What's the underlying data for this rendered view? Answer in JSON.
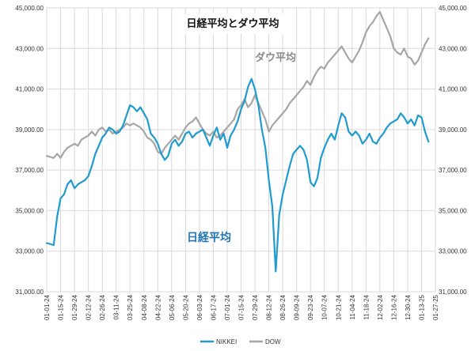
{
  "chart_data": {
    "type": "line",
    "title": "日経平均とダウ平均",
    "annotations": [
      {
        "text": "ダウ平均",
        "series": "DOW"
      },
      {
        "text": "日経平均",
        "series": "NIKKEI"
      }
    ],
    "y_left": {
      "min": 31000,
      "max": 45000,
      "ticks": [
        "31,000.00",
        "33,000.00",
        "35,000.00",
        "37,000.00",
        "39,000.00",
        "41,000.00",
        "43,000.00",
        "45,000.00"
      ]
    },
    "y_right": {
      "min": 31000,
      "max": 45000,
      "ticks": [
        "31,000.00",
        "33,000.00",
        "35,000.00",
        "37,000.00",
        "39,000.00",
        "41,000.00",
        "43,000.00",
        "45,000.00"
      ]
    },
    "x_ticks": [
      "01-01-24",
      "01-15-24",
      "01-29-24",
      "02-12-24",
      "02-26-24",
      "03-11-24",
      "03-25-24",
      "04-08-24",
      "04-22-24",
      "05-06-24",
      "05-20-24",
      "06-03-24",
      "06-17-24",
      "07-01-24",
      "07-15-24",
      "07-29-24",
      "08-12-24",
      "08-26-24",
      "09-09-24",
      "09-23-24",
      "10-07-24",
      "10-21-24",
      "11-04-24",
      "11-18-24",
      "12-02-24",
      "12-16-24",
      "12-30-24",
      "01-13-25",
      "01-27-25"
    ],
    "grid": true,
    "legend_position": "bottom",
    "series": [
      {
        "name": "NIKKEI",
        "color": "#1f9bcf",
        "points": [
          [
            0,
            33400
          ],
          [
            4,
            33300
          ],
          [
            6,
            34700
          ],
          [
            8,
            35600
          ],
          [
            10,
            35800
          ],
          [
            12,
            36300
          ],
          [
            14,
            36500
          ],
          [
            16,
            36100
          ],
          [
            18,
            36300
          ],
          [
            20,
            36400
          ],
          [
            22,
            36500
          ],
          [
            24,
            36700
          ],
          [
            26,
            37200
          ],
          [
            28,
            37800
          ],
          [
            30,
            38200
          ],
          [
            32,
            38600
          ],
          [
            34,
            38800
          ],
          [
            36,
            39100
          ],
          [
            38,
            39000
          ],
          [
            40,
            38800
          ],
          [
            42,
            38900
          ],
          [
            44,
            39200
          ],
          [
            46,
            39700
          ],
          [
            48,
            40200
          ],
          [
            50,
            40100
          ],
          [
            52,
            39900
          ],
          [
            54,
            40100
          ],
          [
            56,
            39800
          ],
          [
            58,
            39500
          ],
          [
            60,
            38800
          ],
          [
            62,
            38600
          ],
          [
            64,
            38300
          ],
          [
            66,
            37800
          ],
          [
            68,
            37500
          ],
          [
            70,
            37700
          ],
          [
            72,
            38300
          ],
          [
            74,
            38500
          ],
          [
            76,
            38200
          ],
          [
            78,
            38400
          ],
          [
            80,
            38800
          ],
          [
            82,
            38900
          ],
          [
            84,
            38600
          ],
          [
            86,
            38800
          ],
          [
            88,
            38900
          ],
          [
            90,
            39000
          ],
          [
            92,
            38600
          ],
          [
            94,
            38200
          ],
          [
            96,
            38700
          ],
          [
            98,
            39100
          ],
          [
            100,
            38500
          ],
          [
            102,
            38800
          ],
          [
            104,
            38100
          ],
          [
            106,
            38700
          ],
          [
            108,
            39000
          ],
          [
            110,
            39400
          ],
          [
            112,
            40000
          ],
          [
            114,
            40400
          ],
          [
            116,
            41100
          ],
          [
            118,
            41500
          ],
          [
            120,
            41000
          ],
          [
            122,
            40200
          ],
          [
            124,
            39000
          ],
          [
            126,
            38100
          ],
          [
            128,
            36500
          ],
          [
            130,
            35200
          ],
          [
            132,
            32000
          ],
          [
            134,
            34800
          ],
          [
            136,
            35800
          ],
          [
            138,
            36500
          ],
          [
            140,
            37200
          ],
          [
            142,
            37800
          ],
          [
            144,
            38000
          ],
          [
            146,
            38200
          ],
          [
            148,
            38000
          ],
          [
            150,
            37500
          ],
          [
            152,
            36400
          ],
          [
            154,
            36200
          ],
          [
            156,
            36600
          ],
          [
            158,
            37600
          ],
          [
            160,
            38100
          ],
          [
            162,
            38500
          ],
          [
            164,
            38800
          ],
          [
            166,
            38500
          ],
          [
            168,
            39200
          ],
          [
            170,
            39800
          ],
          [
            172,
            39600
          ],
          [
            174,
            38900
          ],
          [
            176,
            38700
          ],
          [
            178,
            38900
          ],
          [
            180,
            38700
          ],
          [
            182,
            38300
          ],
          [
            184,
            38500
          ],
          [
            186,
            38800
          ],
          [
            188,
            38400
          ],
          [
            190,
            38300
          ],
          [
            192,
            38600
          ],
          [
            194,
            38800
          ],
          [
            196,
            39100
          ],
          [
            198,
            39300
          ],
          [
            200,
            39400
          ],
          [
            202,
            39500
          ],
          [
            204,
            39800
          ],
          [
            206,
            39600
          ],
          [
            208,
            39300
          ],
          [
            210,
            39500
          ],
          [
            212,
            39200
          ],
          [
            214,
            39700
          ],
          [
            216,
            39600
          ],
          [
            218,
            38900
          ],
          [
            220,
            38400
          ]
        ]
      },
      {
        "name": "DOW",
        "color": "#a6a6a6",
        "points": [
          [
            0,
            37700
          ],
          [
            4,
            37600
          ],
          [
            6,
            37800
          ],
          [
            8,
            37600
          ],
          [
            10,
            37900
          ],
          [
            12,
            38100
          ],
          [
            14,
            38200
          ],
          [
            16,
            38300
          ],
          [
            18,
            38200
          ],
          [
            20,
            38500
          ],
          [
            22,
            38600
          ],
          [
            24,
            38700
          ],
          [
            26,
            38900
          ],
          [
            28,
            38700
          ],
          [
            30,
            39000
          ],
          [
            32,
            39100
          ],
          [
            34,
            38900
          ],
          [
            36,
            39000
          ],
          [
            38,
            38800
          ],
          [
            40,
            38900
          ],
          [
            42,
            39000
          ],
          [
            44,
            39100
          ],
          [
            46,
            39300
          ],
          [
            48,
            39200
          ],
          [
            50,
            39300
          ],
          [
            52,
            39200
          ],
          [
            54,
            39100
          ],
          [
            56,
            38900
          ],
          [
            58,
            38600
          ],
          [
            60,
            38500
          ],
          [
            62,
            38300
          ],
          [
            64,
            37900
          ],
          [
            66,
            37800
          ],
          [
            68,
            38100
          ],
          [
            70,
            38300
          ],
          [
            72,
            38500
          ],
          [
            74,
            38700
          ],
          [
            76,
            38500
          ],
          [
            78,
            38800
          ],
          [
            80,
            39100
          ],
          [
            82,
            39300
          ],
          [
            84,
            39400
          ],
          [
            86,
            39600
          ],
          [
            88,
            39300
          ],
          [
            90,
            39000
          ],
          [
            92,
            38800
          ],
          [
            94,
            38700
          ],
          [
            96,
            38900
          ],
          [
            98,
            38600
          ],
          [
            100,
            38700
          ],
          [
            102,
            38900
          ],
          [
            104,
            39100
          ],
          [
            106,
            39300
          ],
          [
            108,
            39500
          ],
          [
            110,
            40000
          ],
          [
            112,
            40200
          ],
          [
            114,
            40500
          ],
          [
            116,
            40100
          ],
          [
            118,
            40300
          ],
          [
            120,
            40700
          ],
          [
            122,
            40300
          ],
          [
            124,
            39900
          ],
          [
            126,
            39500
          ],
          [
            128,
            38900
          ],
          [
            130,
            39200
          ],
          [
            132,
            39400
          ],
          [
            134,
            39600
          ],
          [
            136,
            39800
          ],
          [
            138,
            40000
          ],
          [
            140,
            40300
          ],
          [
            142,
            40500
          ],
          [
            144,
            40700
          ],
          [
            146,
            40900
          ],
          [
            148,
            41100
          ],
          [
            150,
            41400
          ],
          [
            152,
            41200
          ],
          [
            154,
            41600
          ],
          [
            156,
            41900
          ],
          [
            158,
            42100
          ],
          [
            160,
            42000
          ],
          [
            162,
            42300
          ],
          [
            164,
            42500
          ],
          [
            166,
            42700
          ],
          [
            168,
            42900
          ],
          [
            170,
            43100
          ],
          [
            172,
            42800
          ],
          [
            174,
            42500
          ],
          [
            176,
            42300
          ],
          [
            178,
            42600
          ],
          [
            180,
            42900
          ],
          [
            182,
            43300
          ],
          [
            184,
            43800
          ],
          [
            186,
            44100
          ],
          [
            188,
            44300
          ],
          [
            190,
            44600
          ],
          [
            192,
            44800
          ],
          [
            194,
            44400
          ],
          [
            196,
            44000
          ],
          [
            198,
            43600
          ],
          [
            200,
            43000
          ],
          [
            202,
            42800
          ],
          [
            204,
            42700
          ],
          [
            206,
            43000
          ],
          [
            208,
            42600
          ],
          [
            210,
            42500
          ],
          [
            212,
            42200
          ],
          [
            214,
            42400
          ],
          [
            216,
            42800
          ],
          [
            218,
            43200
          ],
          [
            220,
            43500
          ]
        ]
      }
    ]
  }
}
